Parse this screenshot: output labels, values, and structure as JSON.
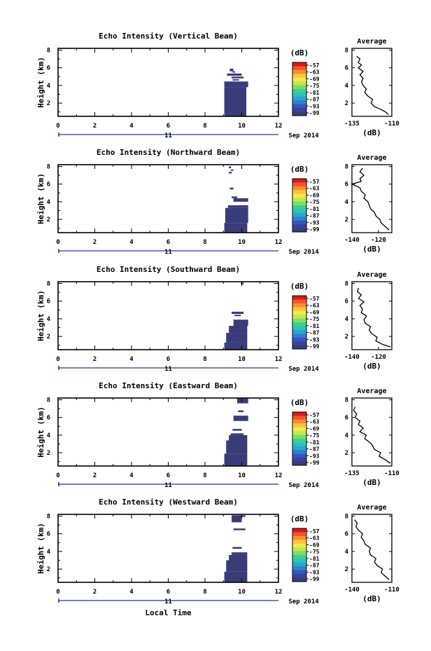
{
  "figure": {
    "xlabel_bottom": "Local Time",
    "date_label": "Sep 2014",
    "day_label": "11",
    "colorbar_label": "(dB)",
    "colorbar_ticks": [
      "-57",
      "-63",
      "-69",
      "-75",
      "-81",
      "-87",
      "-93",
      "-99"
    ],
    "colorbar_colors": [
      "#d7191c",
      "#f2542a",
      "#f98e30",
      "#fdc33a",
      "#f2e94a",
      "#bfe84e",
      "#7fdc63",
      "#3fcf8c",
      "#2bc3b6",
      "#2aa6d1",
      "#2e7fd0",
      "#3457bd",
      "#3842a2",
      "#383d7a"
    ],
    "avg_title": "Average",
    "avg_xlabel": "(dB)",
    "time_ticks": [
      "0",
      "2",
      "4",
      "6",
      "8",
      "10",
      "12"
    ],
    "height_ticks": [
      "2",
      "4",
      "6",
      "8"
    ],
    "ylabel": "Height (km)"
  },
  "chart_data": [
    {
      "type": "heatmap",
      "title": "Echo Intensity (Vertical Beam)",
      "xlabel": "",
      "ylabel": "Height (km)",
      "xlim": [
        0,
        12
      ],
      "ylim": [
        0.5,
        8.2
      ],
      "fill_color": "#383d7a",
      "blocks": [
        {
          "t0": 9.05,
          "t1": 10.25,
          "h0": 0.5,
          "h1": 3.8
        },
        {
          "t0": 9.05,
          "t1": 10.35,
          "h0": 3.8,
          "h1": 4.45
        },
        {
          "t0": 9.2,
          "t1": 10.0,
          "h0": 5.1,
          "h1": 5.35
        },
        {
          "t0": 9.45,
          "t1": 10.1,
          "h0": 4.8,
          "h1": 5.0
        },
        {
          "t0": 9.5,
          "t1": 9.85,
          "h0": 4.55,
          "h1": 4.7
        },
        {
          "t0": 9.5,
          "t1": 9.65,
          "h0": 5.45,
          "h1": 5.6
        },
        {
          "t0": 9.35,
          "t1": 9.55,
          "h0": 5.6,
          "h1": 5.9
        }
      ],
      "avg": {
        "xlim": [
          -135,
          -110
        ],
        "x_ticks": [
          "-135",
          "-110"
        ],
        "ylim": [
          0.5,
          8.2
        ],
        "y_ticks": [
          "2",
          "4",
          "6",
          "8"
        ],
        "profile": [
          [
            -112,
            0.7
          ],
          [
            -114,
            1.0
          ],
          [
            -117,
            1.3
          ],
          [
            -121,
            1.6
          ],
          [
            -123,
            2.0
          ],
          [
            -122,
            2.4
          ],
          [
            -125,
            2.8
          ],
          [
            -127,
            3.2
          ],
          [
            -126,
            3.6
          ],
          [
            -128,
            4.0
          ],
          [
            -129,
            4.4
          ],
          [
            -128,
            4.8
          ],
          [
            -130,
            5.2
          ],
          [
            -128,
            5.6
          ],
          [
            -131,
            6.0
          ],
          [
            -129,
            6.3
          ],
          [
            -131,
            6.6
          ],
          [
            -130,
            7.0
          ],
          [
            -132,
            7.3
          ]
        ]
      }
    },
    {
      "type": "heatmap",
      "title": "Echo Intensity (Northward Beam)",
      "xlabel": "",
      "ylabel": "Height (km)",
      "xlim": [
        0,
        12
      ],
      "ylim": [
        0.5,
        8.2
      ],
      "fill_color": "#383d7a",
      "blocks": [
        {
          "t0": 9.05,
          "t1": 10.3,
          "h0": 0.5,
          "h1": 1.6
        },
        {
          "t0": 9.1,
          "t1": 10.35,
          "h0": 1.6,
          "h1": 3.3
        },
        {
          "t0": 9.25,
          "t1": 10.35,
          "h0": 3.3,
          "h1": 3.6
        },
        {
          "t0": 9.55,
          "t1": 10.35,
          "h0": 4.0,
          "h1": 4.4
        },
        {
          "t0": 9.45,
          "t1": 9.75,
          "h0": 4.4,
          "h1": 4.6
        },
        {
          "t0": 9.35,
          "t1": 9.55,
          "h0": 5.4,
          "h1": 5.6
        },
        {
          "t0": 9.3,
          "t1": 9.45,
          "h0": 7.2,
          "h1": 7.4
        },
        {
          "t0": 9.3,
          "t1": 9.42,
          "h0": 7.8,
          "h1": 8.0
        },
        {
          "t0": 9.4,
          "t1": 9.55,
          "h0": 7.5,
          "h1": 7.65
        }
      ],
      "avg": {
        "xlim": [
          -140,
          -110
        ],
        "x_ticks": [
          "-140",
          "-120"
        ],
        "ylim": [
          0.5,
          8.2
        ],
        "y_ticks": [
          "2",
          "4",
          "6",
          "8"
        ],
        "profile": [
          [
            -112,
            0.8
          ],
          [
            -115,
            1.2
          ],
          [
            -118,
            1.6
          ],
          [
            -119,
            2.0
          ],
          [
            -122,
            2.4
          ],
          [
            -123,
            2.8
          ],
          [
            -126,
            3.2
          ],
          [
            -127,
            3.6
          ],
          [
            -128,
            4.0
          ],
          [
            -131,
            4.4
          ],
          [
            -130,
            4.8
          ],
          [
            -133,
            5.2
          ],
          [
            -134,
            5.6
          ],
          [
            -140,
            6.0
          ],
          [
            -133,
            6.3
          ],
          [
            -134,
            6.6
          ],
          [
            -131,
            7.0
          ],
          [
            -134,
            7.4
          ],
          [
            -132,
            7.8
          ]
        ]
      }
    },
    {
      "type": "heatmap",
      "title": "Echo Intensity (Southward Beam)",
      "xlabel": "",
      "ylabel": "Height (km)",
      "xlim": [
        0,
        12
      ],
      "ylim": [
        0.5,
        8.2
      ],
      "fill_color": "#383d7a",
      "blocks": [
        {
          "t0": 9.05,
          "t1": 10.3,
          "h0": 0.5,
          "h1": 1.3
        },
        {
          "t0": 9.15,
          "t1": 10.3,
          "h0": 1.3,
          "h1": 2.4
        },
        {
          "t0": 9.3,
          "t1": 10.3,
          "h0": 2.4,
          "h1": 3.2
        },
        {
          "t0": 9.55,
          "t1": 10.35,
          "h0": 3.2,
          "h1": 3.9
        },
        {
          "t0": 9.45,
          "t1": 10.1,
          "h0": 4.55,
          "h1": 4.8
        },
        {
          "t0": 9.6,
          "t1": 9.95,
          "h0": 4.3,
          "h1": 4.45
        },
        {
          "t0": 9.95,
          "t1": 10.1,
          "h0": 7.9,
          "h1": 8.1
        }
      ],
      "avg": {
        "xlim": [
          -140,
          -110
        ],
        "x_ticks": [
          "-140",
          "-120"
        ],
        "ylim": [
          0.5,
          8.2
        ],
        "y_ticks": [
          "2",
          "4",
          "6",
          "8"
        ],
        "profile": [
          [
            -111,
            0.8
          ],
          [
            -117,
            1.1
          ],
          [
            -122,
            1.5
          ],
          [
            -121,
            1.9
          ],
          [
            -125,
            2.3
          ],
          [
            -127,
            2.7
          ],
          [
            -126,
            3.1
          ],
          [
            -130,
            3.5
          ],
          [
            -131,
            3.9
          ],
          [
            -129,
            4.3
          ],
          [
            -133,
            4.7
          ],
          [
            -132,
            5.1
          ],
          [
            -134,
            5.5
          ],
          [
            -131,
            5.9
          ],
          [
            -135,
            6.3
          ],
          [
            -133,
            6.7
          ],
          [
            -136,
            7.1
          ],
          [
            -135,
            7.5
          ]
        ]
      }
    },
    {
      "type": "heatmap",
      "title": "Echo Intensity (Eastward Beam)",
      "xlabel": "",
      "ylabel": "Height (km)",
      "xlim": [
        0,
        12
      ],
      "ylim": [
        0.5,
        8.2
      ],
      "fill_color": "#383d7a",
      "blocks": [
        {
          "t0": 9.05,
          "t1": 10.3,
          "h0": 0.5,
          "h1": 1.9
        },
        {
          "t0": 9.15,
          "t1": 10.3,
          "h0": 1.9,
          "h1": 3.4
        },
        {
          "t0": 9.3,
          "t1": 10.3,
          "h0": 3.4,
          "h1": 4.0
        },
        {
          "t0": 9.4,
          "t1": 10.1,
          "h0": 4.0,
          "h1": 4.2
        },
        {
          "t0": 9.5,
          "t1": 10.0,
          "h0": 4.5,
          "h1": 4.7
        },
        {
          "t0": 9.55,
          "t1": 10.35,
          "h0": 5.6,
          "h1": 6.2
        },
        {
          "t0": 9.75,
          "t1": 10.35,
          "h0": 7.6,
          "h1": 8.2
        },
        {
          "t0": 9.8,
          "t1": 10.1,
          "h0": 6.6,
          "h1": 6.8
        }
      ],
      "avg": {
        "xlim": [
          -135,
          -110
        ],
        "x_ticks": [
          "-135",
          "-110"
        ],
        "ylim": [
          0.5,
          8.2
        ],
        "y_ticks": [
          "2",
          "4",
          "6",
          "8"
        ],
        "profile": [
          [
            -111,
            0.8
          ],
          [
            -114,
            1.2
          ],
          [
            -118,
            1.6
          ],
          [
            -117,
            2.0
          ],
          [
            -121,
            2.4
          ],
          [
            -122,
            2.8
          ],
          [
            -124,
            3.2
          ],
          [
            -127,
            3.6
          ],
          [
            -126,
            4.0
          ],
          [
            -130,
            4.4
          ],
          [
            -128,
            4.8
          ],
          [
            -131,
            5.2
          ],
          [
            -130,
            5.6
          ],
          [
            -133,
            6.0
          ],
          [
            -132,
            6.4
          ],
          [
            -134,
            6.8
          ],
          [
            -133,
            7.2
          ]
        ]
      }
    },
    {
      "type": "heatmap",
      "title": "Echo Intensity (Westward Beam)",
      "xlabel": "Local Time",
      "ylabel": "Height (km)",
      "xlim": [
        0,
        12
      ],
      "ylim": [
        0.5,
        8.2
      ],
      "fill_color": "#383d7a",
      "blocks": [
        {
          "t0": 9.05,
          "t1": 10.3,
          "h0": 0.5,
          "h1": 1.7
        },
        {
          "t0": 9.15,
          "t1": 10.3,
          "h0": 1.7,
          "h1": 3.0
        },
        {
          "t0": 9.3,
          "t1": 10.3,
          "h0": 3.0,
          "h1": 3.6
        },
        {
          "t0": 9.45,
          "t1": 10.3,
          "h0": 3.6,
          "h1": 3.9
        },
        {
          "t0": 9.5,
          "t1": 10.0,
          "h0": 4.3,
          "h1": 4.5
        },
        {
          "t0": 9.55,
          "t1": 10.2,
          "h0": 6.4,
          "h1": 6.6
        },
        {
          "t0": 9.45,
          "t1": 10.0,
          "h0": 7.3,
          "h1": 8.1
        },
        {
          "t0": 9.9,
          "t1": 10.2,
          "h0": 7.9,
          "h1": 8.1
        }
      ],
      "avg": {
        "xlim": [
          -140,
          -110
        ],
        "x_ticks": [
          "-140",
          "-110"
        ],
        "ylim": [
          0.5,
          8.2
        ],
        "y_ticks": [
          "2",
          "4",
          "6",
          "8"
        ],
        "profile": [
          [
            -112,
            0.8
          ],
          [
            -115,
            1.2
          ],
          [
            -118,
            1.6
          ],
          [
            -117,
            2.0
          ],
          [
            -121,
            2.4
          ],
          [
            -123,
            2.8
          ],
          [
            -122,
            3.2
          ],
          [
            -126,
            3.6
          ],
          [
            -127,
            4.0
          ],
          [
            -126,
            4.4
          ],
          [
            -130,
            4.8
          ],
          [
            -131,
            5.2
          ],
          [
            -133,
            5.6
          ],
          [
            -132,
            6.0
          ],
          [
            -135,
            6.4
          ],
          [
            -137,
            6.8
          ],
          [
            -136,
            7.2
          ],
          [
            -138,
            7.6
          ]
        ]
      }
    }
  ]
}
